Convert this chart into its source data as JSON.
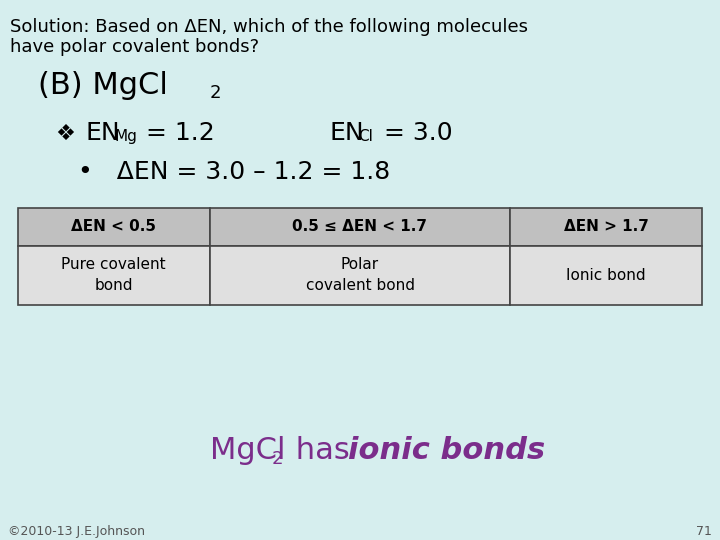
{
  "bg_color": "#d6eeee",
  "title_line1": "Solution: Based on ΔEN, which of the following molecules",
  "title_line2": "have polar covalent bonds?",
  "title_fontsize": 13,
  "title_color": "#000000",
  "b_label": "(B) MgCl",
  "b_sub": "2",
  "b_fontsize": 22,
  "en_line": [
    {
      "text": "❖  EN",
      "sub": "Mg",
      "rest": " = 1.2          EN",
      "sub2": "Cl",
      "rest2": " = 3.0"
    }
  ],
  "en_fontsize": 18,
  "delta_line": "•   ΔEN = 3.0 – 1.2 = 1.8",
  "delta_fontsize": 18,
  "table": {
    "headers": [
      "ΔEN < 0.5",
      "0.5 ≤ ΔEN < 1.7",
      "ΔEN > 1.7"
    ],
    "rows": [
      [
        "Pure covalent\nbond",
        "Polar\ncovalent bond",
        "Ionic bond"
      ]
    ],
    "header_bg": "#c0c0c0",
    "row_bg": "#e0e0e0",
    "border_color": "#444444",
    "header_fontsize": 11,
    "row_fontsize": 11,
    "header_bold": true
  },
  "conclusion_text1": "MgCl",
  "conclusion_sub": "2",
  "conclusion_text2": " has ",
  "conclusion_text3": "ionic bonds",
  "conclusion_color": "#7B2D8B",
  "conclusion_fontsize": 22,
  "footer_text": "©2010-13 J.E.Johnson",
  "footer_page": "71",
  "footer_fontsize": 9,
  "footer_color": "#555555"
}
